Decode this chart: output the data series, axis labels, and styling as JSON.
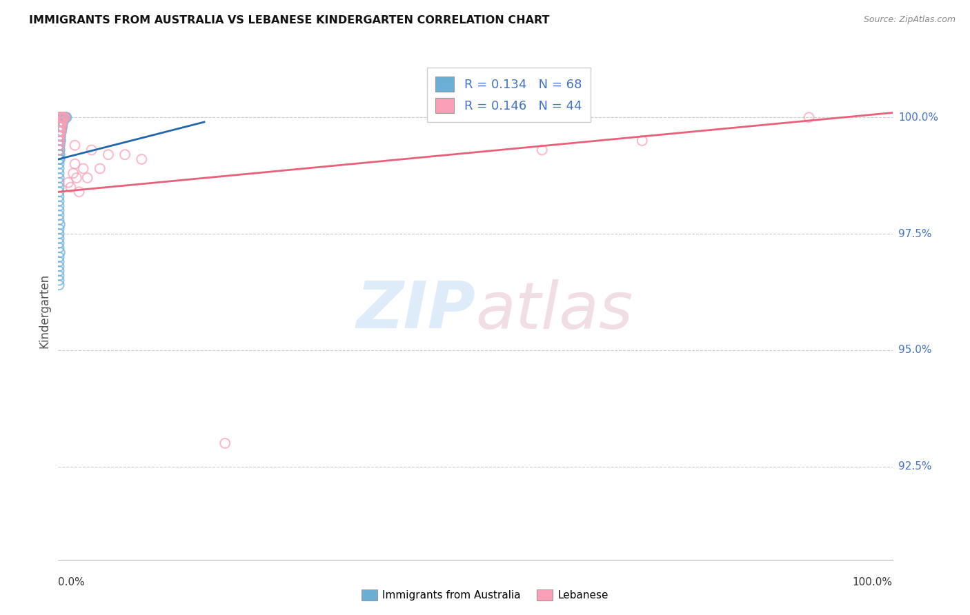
{
  "title": "IMMIGRANTS FROM AUSTRALIA VS LEBANESE KINDERGARTEN CORRELATION CHART",
  "source": "Source: ZipAtlas.com",
  "ylabel": "Kindergarten",
  "ytick_labels": [
    "92.5%",
    "95.0%",
    "97.5%",
    "100.0%"
  ],
  "ytick_values": [
    0.925,
    0.95,
    0.975,
    1.0
  ],
  "xlim": [
    0.0,
    1.0
  ],
  "ylim": [
    0.905,
    1.012
  ],
  "legend_blue_R": "R = 0.134",
  "legend_blue_N": "N = 68",
  "legend_pink_R": "R = 0.146",
  "legend_pink_N": "N = 44",
  "blue_color": "#6baed6",
  "pink_color": "#fa9fb5",
  "blue_line_color": "#2166ac",
  "pink_line_color": "#e8607a",
  "watermark_zip": "ZIP",
  "watermark_atlas": "atlas",
  "blue_points_x": [
    0.001,
    0.002,
    0.003,
    0.004,
    0.005,
    0.006,
    0.007,
    0.008,
    0.009,
    0.01,
    0.001,
    0.002,
    0.003,
    0.004,
    0.005,
    0.006,
    0.001,
    0.002,
    0.003,
    0.004,
    0.005,
    0.001,
    0.002,
    0.003,
    0.004,
    0.001,
    0.002,
    0.003,
    0.001,
    0.002,
    0.003,
    0.001,
    0.002,
    0.001,
    0.002,
    0.001,
    0.002,
    0.001,
    0.002,
    0.001,
    0.001,
    0.001,
    0.001,
    0.001,
    0.001,
    0.001,
    0.001,
    0.001,
    0.001,
    0.001,
    0.003,
    0.004,
    0.001,
    0.001,
    0.002,
    0.001,
    0.001,
    0.001,
    0.001,
    0.001,
    0.002,
    0.001,
    0.001,
    0.001,
    0.001,
    0.001,
    0.001,
    0.001
  ],
  "blue_points_y": [
    1.0,
    1.0,
    1.0,
    1.0,
    1.0,
    1.0,
    1.0,
    1.0,
    1.0,
    1.0,
    0.999,
    0.999,
    0.999,
    0.999,
    0.999,
    0.999,
    0.998,
    0.998,
    0.998,
    0.998,
    0.998,
    0.997,
    0.997,
    0.997,
    0.997,
    0.996,
    0.996,
    0.996,
    0.995,
    0.995,
    0.995,
    0.994,
    0.994,
    0.993,
    0.993,
    0.992,
    0.992,
    0.991,
    0.991,
    0.99,
    0.989,
    0.988,
    0.987,
    0.986,
    0.985,
    0.984,
    0.983,
    0.982,
    0.981,
    0.98,
    0.999,
    0.998,
    0.979,
    0.978,
    0.977,
    0.976,
    0.975,
    0.974,
    0.973,
    0.972,
    0.971,
    0.97,
    0.969,
    0.968,
    0.967,
    0.966,
    0.965,
    0.964
  ],
  "pink_points_x": [
    0.001,
    0.002,
    0.003,
    0.004,
    0.005,
    0.006,
    0.007,
    0.008,
    0.001,
    0.002,
    0.003,
    0.004,
    0.005,
    0.001,
    0.002,
    0.003,
    0.004,
    0.001,
    0.002,
    0.003,
    0.001,
    0.002,
    0.001,
    0.002,
    0.001,
    0.001,
    0.02,
    0.04,
    0.06,
    0.08,
    0.1,
    0.02,
    0.03,
    0.05,
    0.018,
    0.022,
    0.035,
    0.012,
    0.015,
    0.025,
    0.2,
    0.58,
    0.7,
    0.9
  ],
  "pink_points_y": [
    1.0,
    1.0,
    1.0,
    1.0,
    1.0,
    1.0,
    1.0,
    1.0,
    0.999,
    0.999,
    0.999,
    0.999,
    0.999,
    0.998,
    0.998,
    0.998,
    0.998,
    0.997,
    0.997,
    0.997,
    0.996,
    0.996,
    0.995,
    0.995,
    0.994,
    0.993,
    0.994,
    0.993,
    0.992,
    0.992,
    0.991,
    0.99,
    0.989,
    0.989,
    0.988,
    0.987,
    0.987,
    0.986,
    0.985,
    0.984,
    0.93,
    0.993,
    0.995,
    1.0
  ],
  "blue_line_x": [
    0.0,
    0.175
  ],
  "blue_line_y_start": 0.991,
  "blue_line_y_end": 0.999,
  "pink_line_x": [
    0.0,
    1.0
  ],
  "pink_line_y_start": 0.984,
  "pink_line_y_end": 1.001
}
